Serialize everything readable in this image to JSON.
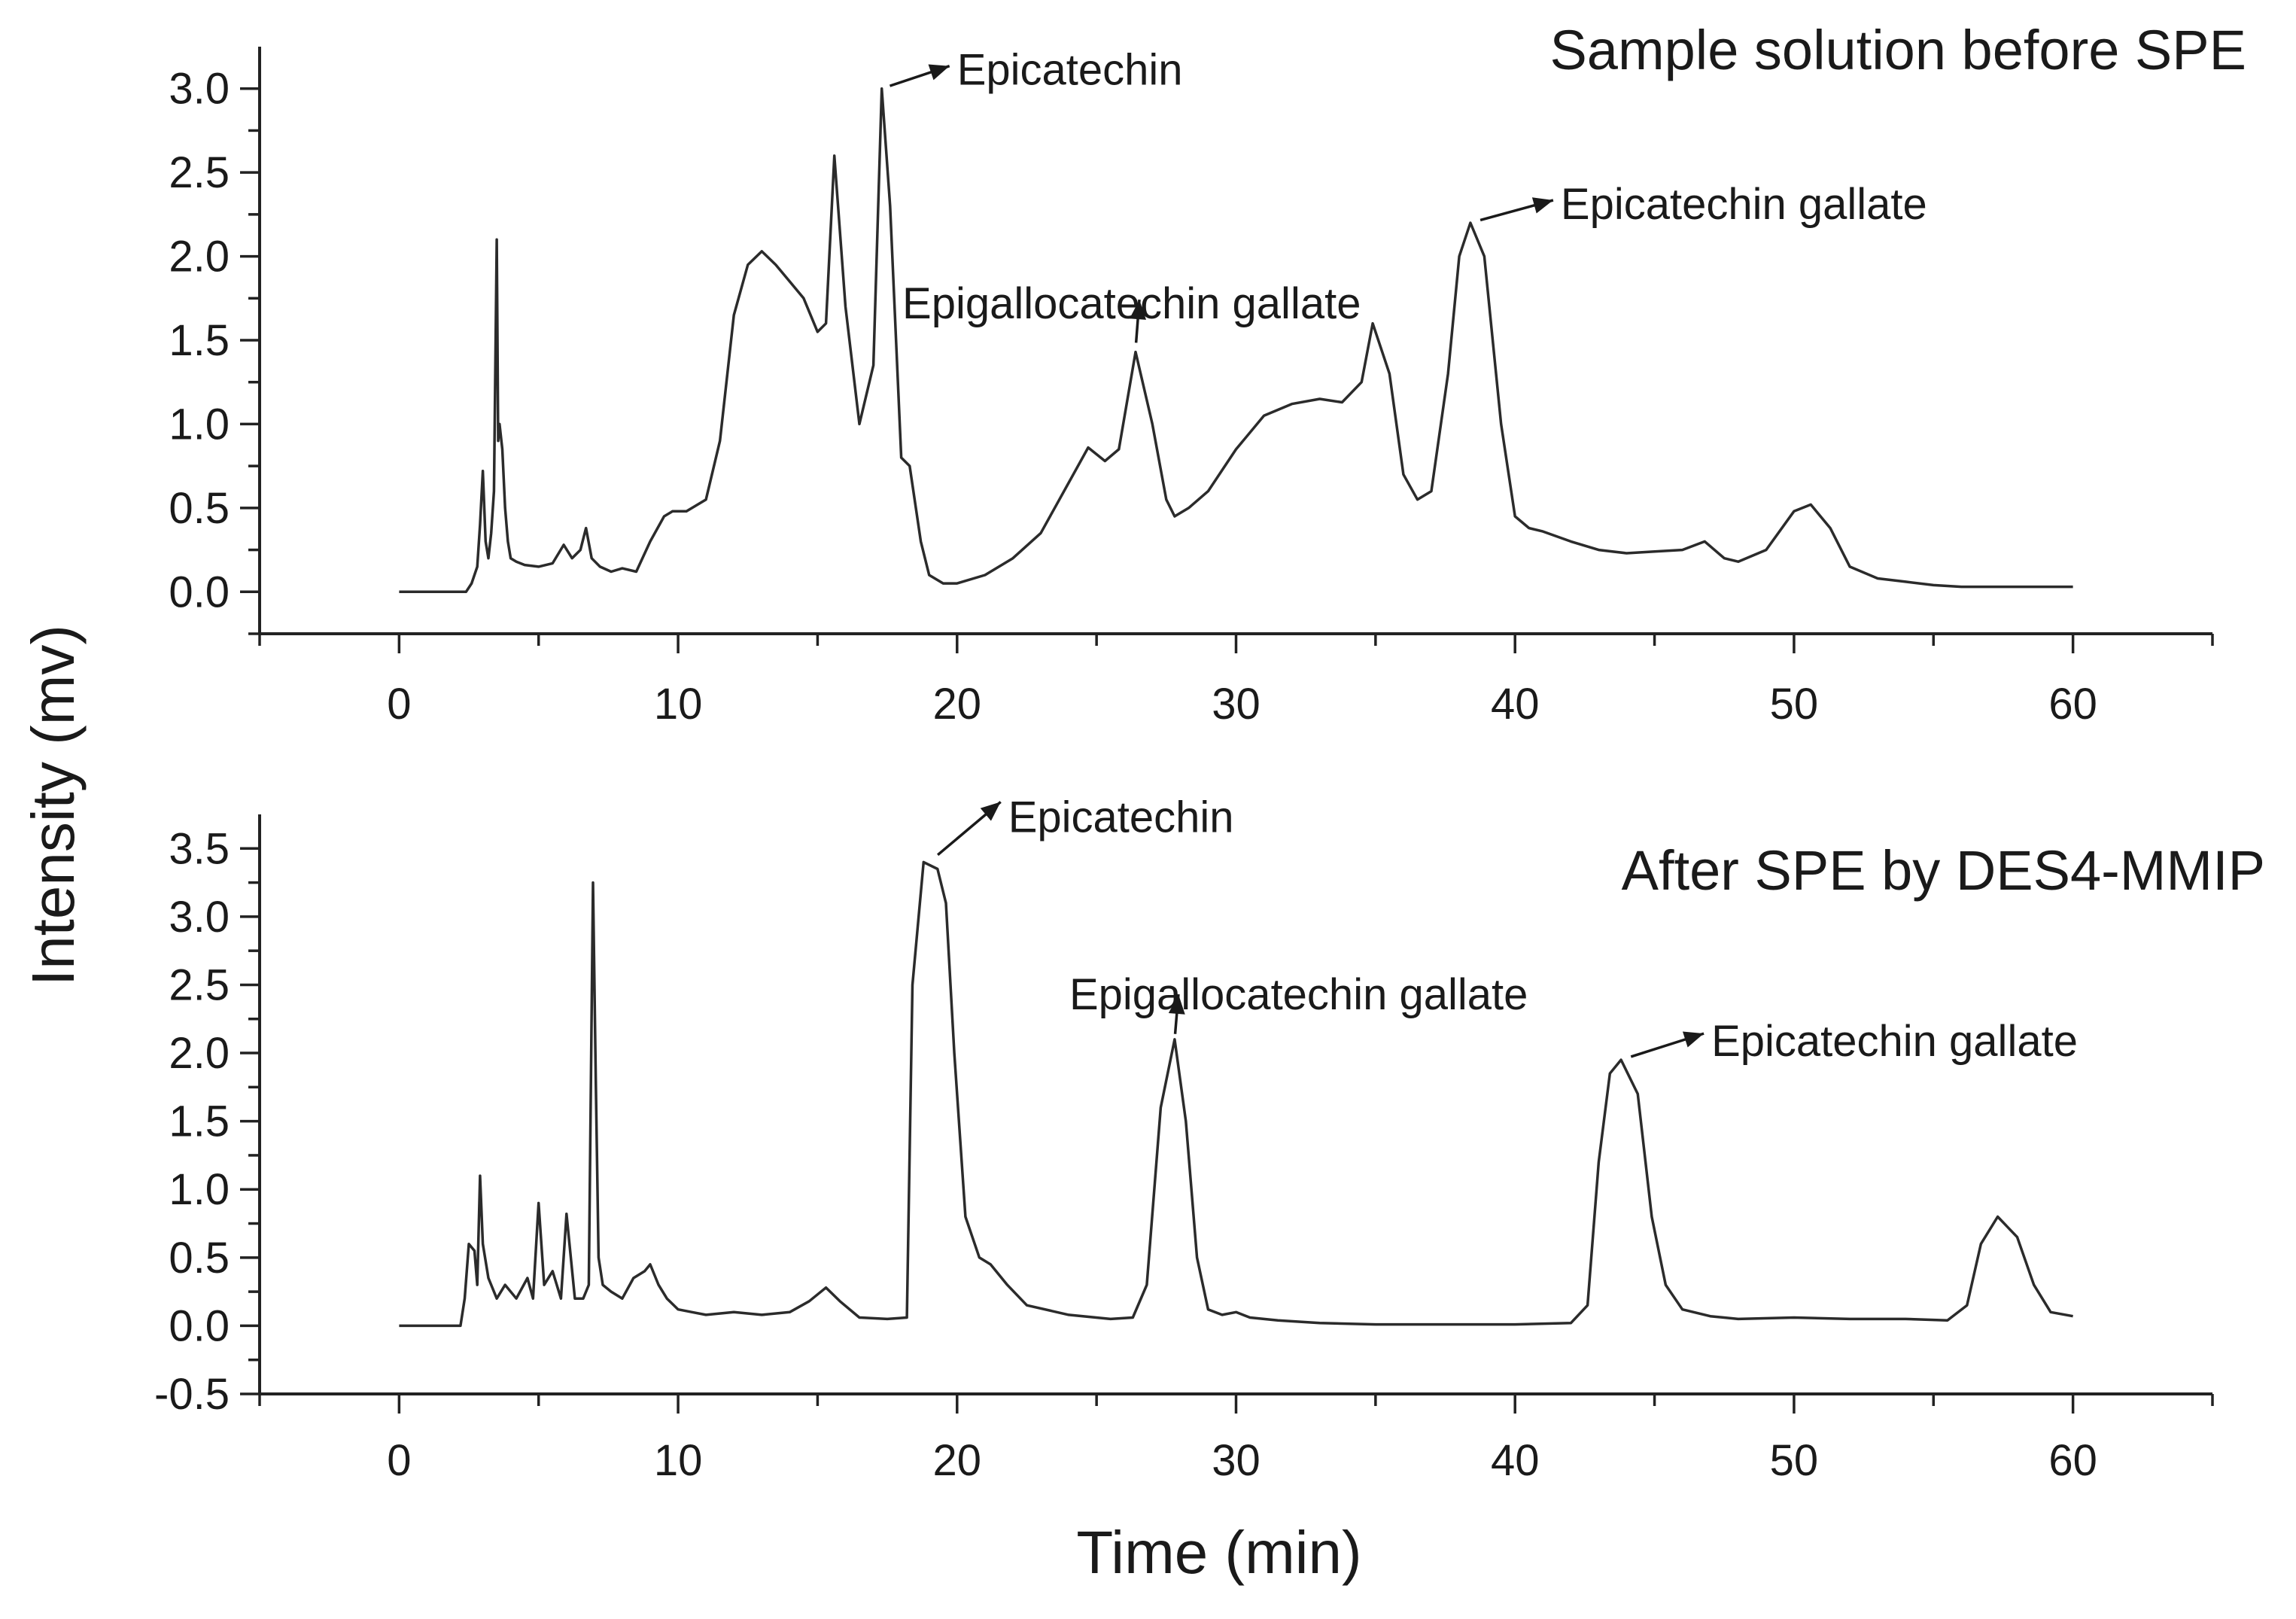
{
  "figure": {
    "ylabel": "Intensity (mv)",
    "xlabel": "Time (min)"
  },
  "chart_data": [
    {
      "type": "line",
      "title": "Sample solution before SPE",
      "xlim": [
        -5,
        65
      ],
      "ylim": [
        -0.25,
        3.25
      ],
      "xticks": [
        "0",
        "10",
        "20",
        "30",
        "40",
        "50",
        "60"
      ],
      "yticks": [
        "0.0",
        "0.5",
        "1.0",
        "1.5",
        "2.0",
        "2.5",
        "3.0"
      ],
      "annotations": [
        {
          "label": "Epicatechin",
          "x": 17.3,
          "y": 3.0
        },
        {
          "label": "Epigallocatechin gallate",
          "x": 26.4,
          "y": 1.45
        },
        {
          "label": "Epicatechin gallate",
          "x": 38.4,
          "y": 2.2
        }
      ],
      "series": [
        {
          "name": "Sample solution before SPE",
          "x": [
            0,
            2.4,
            2.6,
            2.8,
            2.9,
            3.0,
            3.1,
            3.2,
            3.3,
            3.4,
            3.5,
            3.55,
            3.6,
            3.7,
            3.8,
            3.9,
            4.0,
            4.2,
            4.5,
            5.0,
            5.5,
            5.9,
            6.2,
            6.5,
            6.7,
            6.9,
            7.2,
            7.6,
            8.0,
            8.5,
            9.0,
            9.5,
            9.8,
            10.3,
            11.0,
            11.5,
            12.0,
            12.5,
            13.0,
            13.5,
            14.0,
            14.5,
            15.0,
            15.3,
            15.6,
            16.0,
            16.5,
            17.0,
            17.3,
            17.6,
            18.0,
            18.3,
            18.7,
            19.0,
            19.5,
            20.0,
            21.0,
            22.0,
            23.0,
            24.0,
            24.7,
            25.3,
            25.8,
            26.4,
            27.0,
            27.5,
            27.8,
            28.3,
            29.0,
            30.0,
            31.0,
            32.0,
            33.0,
            33.8,
            34.5,
            34.9,
            35.5,
            36.0,
            36.5,
            37.0,
            37.6,
            38.0,
            38.4,
            38.9,
            39.5,
            40.0,
            40.5,
            41.0,
            42.0,
            43.0,
            44.0,
            45.0,
            46.0,
            46.8,
            47.5,
            48.0,
            49.0,
            50.0,
            50.6,
            51.3,
            52.0,
            53.0,
            54.0,
            55.0,
            56.0,
            58.0,
            60.0
          ],
          "y": [
            0.0,
            0.0,
            0.05,
            0.15,
            0.4,
            0.72,
            0.3,
            0.2,
            0.35,
            0.6,
            2.1,
            0.9,
            1.0,
            0.85,
            0.5,
            0.3,
            0.2,
            0.18,
            0.16,
            0.15,
            0.17,
            0.28,
            0.2,
            0.25,
            0.38,
            0.2,
            0.15,
            0.12,
            0.14,
            0.12,
            0.3,
            0.45,
            0.48,
            0.48,
            0.55,
            0.9,
            1.65,
            1.95,
            2.03,
            1.95,
            1.85,
            1.75,
            1.55,
            1.6,
            2.6,
            1.7,
            1.0,
            1.35,
            3.0,
            2.3,
            0.8,
            0.75,
            0.3,
            0.1,
            0.05,
            0.05,
            0.1,
            0.2,
            0.35,
            0.65,
            0.86,
            0.78,
            0.85,
            1.43,
            1.0,
            0.55,
            0.45,
            0.5,
            0.6,
            0.85,
            1.05,
            1.12,
            1.15,
            1.13,
            1.25,
            1.6,
            1.3,
            0.7,
            0.55,
            0.6,
            1.3,
            2.0,
            2.2,
            2.0,
            1.0,
            0.45,
            0.38,
            0.36,
            0.3,
            0.25,
            0.23,
            0.24,
            0.25,
            0.3,
            0.2,
            0.18,
            0.25,
            0.48,
            0.52,
            0.38,
            0.15,
            0.08,
            0.06,
            0.04,
            0.03,
            0.03,
            0.03
          ]
        }
      ]
    },
    {
      "type": "line",
      "title": "After SPE by DES4-MMIP",
      "xlim": [
        -5,
        65
      ],
      "ylim": [
        -0.5,
        3.75
      ],
      "xticks": [
        "0",
        "10",
        "20",
        "30",
        "40",
        "50",
        "60"
      ],
      "yticks": [
        "-0.5",
        "0.0",
        "0.5",
        "1.0",
        "1.5",
        "2.0",
        "2.5",
        "3.0",
        "3.5"
      ],
      "annotations": [
        {
          "label": "Epicatechin",
          "x": 19.0,
          "y": 3.4
        },
        {
          "label": "Epigallocatechin gallate",
          "x": 27.8,
          "y": 2.1
        },
        {
          "label": "Epicatechin gallate",
          "x": 43.8,
          "y": 1.95
        }
      ],
      "series": [
        {
          "name": "After SPE by DES4-MMIP",
          "x": [
            0,
            2.2,
            2.35,
            2.5,
            2.7,
            2.8,
            2.9,
            3.0,
            3.2,
            3.5,
            3.8,
            4.2,
            4.6,
            4.8,
            5.0,
            5.2,
            5.5,
            5.8,
            6.0,
            6.3,
            6.6,
            6.8,
            6.95,
            7.05,
            7.15,
            7.3,
            7.6,
            8.0,
            8.4,
            8.8,
            9.0,
            9.3,
            9.6,
            10.0,
            10.5,
            11.0,
            12.0,
            13.0,
            14.0,
            14.7,
            15.3,
            15.8,
            16.5,
            17.5,
            18.2,
            18.4,
            18.8,
            19.3,
            19.6,
            19.9,
            20.3,
            20.8,
            21.2,
            21.8,
            22.5,
            24.0,
            25.5,
            26.3,
            26.8,
            27.3,
            27.8,
            28.2,
            28.6,
            29.0,
            29.5,
            30.0,
            30.5,
            31.5,
            33.0,
            35.0,
            38.0,
            40.0,
            42.0,
            42.6,
            43.0,
            43.4,
            43.8,
            44.4,
            44.9,
            45.4,
            46.0,
            47.0,
            48.0,
            50.0,
            52.0,
            54.0,
            55.5,
            56.2,
            56.7,
            57.3,
            58.0,
            58.6,
            59.2,
            60.0
          ],
          "y": [
            0.0,
            0.0,
            0.2,
            0.6,
            0.55,
            0.3,
            1.1,
            0.6,
            0.35,
            0.2,
            0.3,
            0.2,
            0.35,
            0.2,
            0.9,
            0.3,
            0.4,
            0.2,
            0.82,
            0.2,
            0.2,
            0.3,
            3.25,
            1.8,
            0.5,
            0.3,
            0.25,
            0.2,
            0.35,
            0.4,
            0.45,
            0.3,
            0.2,
            0.12,
            0.1,
            0.08,
            0.1,
            0.08,
            0.1,
            0.18,
            0.28,
            0.18,
            0.06,
            0.05,
            0.06,
            2.5,
            3.4,
            3.35,
            3.1,
            2.0,
            0.8,
            0.5,
            0.45,
            0.3,
            0.15,
            0.08,
            0.05,
            0.06,
            0.3,
            1.6,
            2.1,
            1.5,
            0.5,
            0.12,
            0.08,
            0.1,
            0.06,
            0.04,
            0.02,
            0.01,
            0.01,
            0.01,
            0.02,
            0.15,
            1.2,
            1.85,
            1.95,
            1.7,
            0.8,
            0.3,
            0.12,
            0.07,
            0.05,
            0.06,
            0.05,
            0.05,
            0.04,
            0.15,
            0.6,
            0.8,
            0.65,
            0.3,
            0.1,
            0.07
          ]
        }
      ]
    }
  ]
}
